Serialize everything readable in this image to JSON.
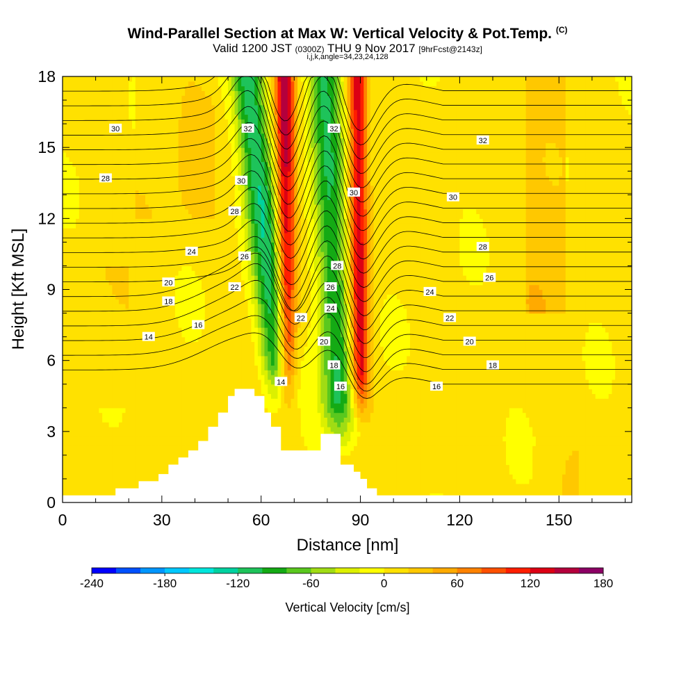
{
  "title": {
    "main": "Wind-Parallel Section at Max W: Vertical Velocity & Pot.Temp.",
    "copyright": "(C)",
    "valid_prefix": "Valid 1200 JST",
    "valid_utc": "(0300Z)",
    "valid_date": "THU 9 Nov 2017",
    "forecast": "[9hrFcst@2143z]",
    "indices": "i,j,k,angle=34,23,24,128"
  },
  "chart_data": {
    "type": "heatmap",
    "xlabel": "Distance [nm]",
    "ylabel": "Height [Kft MSL]",
    "xlim": [
      0,
      172
    ],
    "ylim": [
      0,
      18
    ],
    "x_ticks": [
      0,
      30,
      60,
      90,
      120,
      150
    ],
    "y_ticks": [
      0,
      3,
      6,
      9,
      12,
      15,
      18
    ],
    "grid": false,
    "colorbar": {
      "label": "Vertical Velocity [cm/s]",
      "tick_labels": [
        -240,
        -180,
        -120,
        -60,
        0,
        60,
        120,
        180
      ],
      "bins": [
        -240,
        -220,
        -200,
        -180,
        -160,
        -140,
        -120,
        -100,
        -80,
        -60,
        -40,
        -20,
        0,
        20,
        40,
        60,
        80,
        100,
        120,
        140,
        160,
        180
      ],
      "colors": [
        "#0000ff",
        "#0050ff",
        "#0096ff",
        "#00c8ff",
        "#00e6dc",
        "#00d2a0",
        "#1ec35a",
        "#14aa14",
        "#5ac81e",
        "#a0dc14",
        "#dcf000",
        "#ffff00",
        "#ffe100",
        "#ffc800",
        "#ffaa00",
        "#ff8200",
        "#ff5000",
        "#ff1e00",
        "#dc0014",
        "#b4003c",
        "#8c0064"
      ]
    },
    "bands": [
      {
        "name": "downdraft",
        "base_km": [
          66,
          4.6
        ],
        "top_km": [
          56,
          18
        ],
        "velocity_cms": -120
      },
      {
        "name": "updraft",
        "base_km": [
          68,
          4.5
        ],
        "top_km": [
          67,
          18
        ],
        "velocity_cms": 140
      },
      {
        "name": "downdraft",
        "base_km": [
          84,
          3.0
        ],
        "top_km": [
          79,
          18
        ],
        "velocity_cms": -110
      },
      {
        "name": "updraft",
        "base_km": [
          90,
          4.2
        ],
        "top_km": [
          89,
          18
        ],
        "velocity_cms": 130
      }
    ],
    "terrain": {
      "x": [
        0,
        16,
        16,
        23,
        23,
        29,
        29,
        32,
        32,
        35,
        35,
        38,
        38,
        41,
        41,
        44,
        44,
        47,
        47,
        50,
        50,
        52,
        52,
        58,
        58,
        61,
        61,
        63,
        63,
        66,
        66,
        78,
        78,
        80,
        80,
        84,
        84,
        88,
        88,
        90,
        90,
        92,
        92,
        95,
        95,
        100,
        100,
        172
      ],
      "h": [
        0.3,
        0.3,
        0.6,
        0.6,
        0.9,
        0.9,
        1.2,
        1.2,
        1.6,
        1.6,
        1.9,
        1.9,
        2.2,
        2.2,
        2.6,
        2.6,
        3.2,
        3.2,
        3.8,
        3.8,
        4.5,
        4.5,
        4.8,
        4.8,
        4.5,
        4.5,
        3.8,
        3.8,
        3.2,
        3.2,
        2.2,
        2.2,
        2.9,
        2.9,
        2.9,
        2.9,
        1.6,
        1.6,
        1.3,
        1.3,
        1.0,
        1.0,
        0.6,
        0.6,
        0.3,
        0.3,
        0.3,
        0.3
      ]
    },
    "isentropes": {
      "theta_values": [
        14,
        16,
        18,
        20,
        22,
        24,
        26,
        28,
        30,
        32
      ],
      "labels": [
        {
          "text": "30",
          "x": 16,
          "y": 15.8
        },
        {
          "text": "28",
          "x": 13,
          "y": 13.7
        },
        {
          "text": "24",
          "x": 39,
          "y": 10.6
        },
        {
          "text": "20",
          "x": 32,
          "y": 9.3
        },
        {
          "text": "18",
          "x": 32,
          "y": 8.5
        },
        {
          "text": "16",
          "x": 41,
          "y": 7.5
        },
        {
          "text": "14",
          "x": 26,
          "y": 7.0
        },
        {
          "text": "32",
          "x": 56,
          "y": 15.8
        },
        {
          "text": "30",
          "x": 54,
          "y": 13.6
        },
        {
          "text": "28",
          "x": 52,
          "y": 12.3
        },
        {
          "text": "26",
          "x": 55,
          "y": 10.4
        },
        {
          "text": "22",
          "x": 52,
          "y": 9.1
        },
        {
          "text": "22",
          "x": 72,
          "y": 7.8
        },
        {
          "text": "14",
          "x": 66,
          "y": 5.1
        },
        {
          "text": "32",
          "x": 82,
          "y": 15.8
        },
        {
          "text": "30",
          "x": 88,
          "y": 13.1
        },
        {
          "text": "28",
          "x": 83,
          "y": 10.0
        },
        {
          "text": "26",
          "x": 81,
          "y": 9.1
        },
        {
          "text": "24",
          "x": 81,
          "y": 8.2
        },
        {
          "text": "20",
          "x": 79,
          "y": 6.8
        },
        {
          "text": "18",
          "x": 82,
          "y": 5.8
        },
        {
          "text": "16",
          "x": 84,
          "y": 4.9
        },
        {
          "text": "32",
          "x": 127,
          "y": 15.3
        },
        {
          "text": "30",
          "x": 118,
          "y": 12.9
        },
        {
          "text": "28",
          "x": 127,
          "y": 10.8
        },
        {
          "text": "26",
          "x": 129,
          "y": 9.5
        },
        {
          "text": "24",
          "x": 111,
          "y": 8.9
        },
        {
          "text": "22",
          "x": 117,
          "y": 7.8
        },
        {
          "text": "20",
          "x": 123,
          "y": 6.8
        },
        {
          "text": "18",
          "x": 130,
          "y": 5.8
        },
        {
          "text": "16",
          "x": 113,
          "y": 4.9
        }
      ]
    }
  }
}
